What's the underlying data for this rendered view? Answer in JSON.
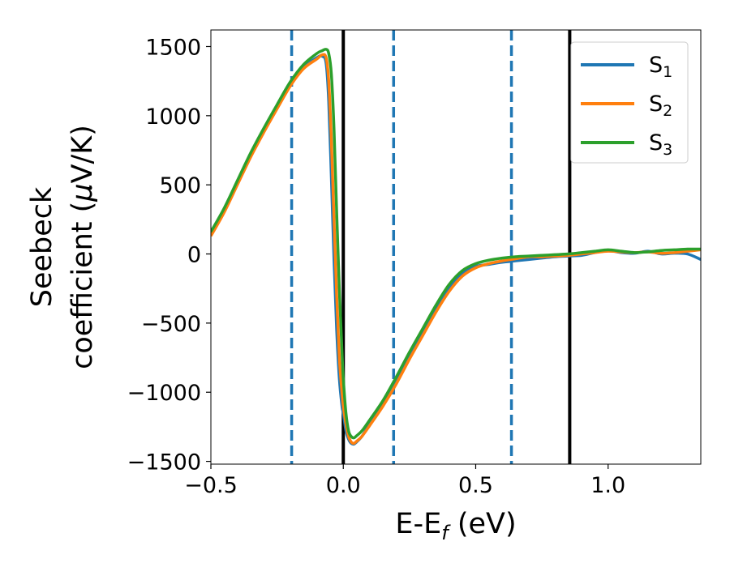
{
  "chart_data": {
    "type": "line",
    "xlabel": "E-E_f (eV)",
    "xlabel_parts": {
      "main": "E-E",
      "sub": "f",
      "tail": " (eV)"
    },
    "ylabel_line1": "Seebeck",
    "ylabel_line2_prefix": "coefficient  (",
    "ylabel_line2_mu": "μ",
    "ylabel_line2_suffix": "V/K)",
    "xlim": [
      -0.5,
      1.35
    ],
    "ylim": [
      -1520,
      1620
    ],
    "x_ticks": [
      {
        "value": -0.5,
        "label": "−0.5"
      },
      {
        "value": 0.0,
        "label": "0.0"
      },
      {
        "value": 0.5,
        "label": "0.5"
      },
      {
        "value": 1.0,
        "label": "1.0"
      }
    ],
    "y_ticks": [
      {
        "value": 1500,
        "label": "1500"
      },
      {
        "value": 1000,
        "label": "1000"
      },
      {
        "value": 500,
        "label": "500"
      },
      {
        "value": 0,
        "label": "0"
      },
      {
        "value": -500,
        "label": "−500"
      },
      {
        "value": -1000,
        "label": "−1000"
      },
      {
        "value": -1500,
        "label": "−1500"
      }
    ],
    "grid": false,
    "legend_placement": "top-right",
    "vertical_lines": [
      {
        "x": -0.195,
        "style": "dashed",
        "color": "#1f77b4"
      },
      {
        "x": 0.0,
        "style": "solid",
        "color": "#000000"
      },
      {
        "x": 0.19,
        "style": "dashed",
        "color": "#1f77b4"
      },
      {
        "x": 0.635,
        "style": "dashed",
        "color": "#1f77b4"
      },
      {
        "x": 0.855,
        "style": "solid",
        "color": "#000000"
      }
    ],
    "series": [
      {
        "name": "S1",
        "label_main": "S",
        "label_sub": "1",
        "color": "#1f77b4",
        "x": [
          -0.5,
          -0.45,
          -0.4,
          -0.35,
          -0.3,
          -0.25,
          -0.2,
          -0.15,
          -0.1,
          -0.08,
          -0.065,
          -0.055,
          -0.045,
          -0.035,
          -0.025,
          -0.015,
          -0.005,
          0.0,
          0.01,
          0.02,
          0.03,
          0.04,
          0.05,
          0.07,
          0.1,
          0.15,
          0.2,
          0.25,
          0.3,
          0.35,
          0.4,
          0.45,
          0.5,
          0.55,
          0.6,
          0.65,
          0.7,
          0.75,
          0.8,
          0.85,
          0.9,
          0.95,
          1.0,
          1.05,
          1.1,
          1.15,
          1.2,
          1.25,
          1.3,
          1.35
        ],
        "y": [
          150,
          320,
          520,
          720,
          900,
          1070,
          1230,
          1350,
          1420,
          1430,
          1380,
          1100,
          550,
          -50,
          -550,
          -900,
          -1100,
          -1150,
          -1280,
          -1340,
          -1370,
          -1375,
          -1360,
          -1320,
          -1230,
          -1090,
          -920,
          -740,
          -570,
          -400,
          -250,
          -140,
          -90,
          -75,
          -60,
          -50,
          -40,
          -30,
          -20,
          -15,
          -10,
          10,
          25,
          10,
          5,
          20,
          0,
          5,
          0,
          -40
        ]
      },
      {
        "name": "S2",
        "label_main": "S",
        "label_sub": "2",
        "color": "#ff7f0e",
        "x": [
          -0.5,
          -0.45,
          -0.4,
          -0.35,
          -0.3,
          -0.25,
          -0.2,
          -0.15,
          -0.1,
          -0.08,
          -0.065,
          -0.055,
          -0.045,
          -0.035,
          -0.025,
          -0.015,
          -0.005,
          0.0,
          0.01,
          0.02,
          0.03,
          0.04,
          0.05,
          0.07,
          0.1,
          0.15,
          0.2,
          0.25,
          0.3,
          0.35,
          0.4,
          0.45,
          0.5,
          0.55,
          0.6,
          0.65,
          0.7,
          0.75,
          0.8,
          0.85,
          0.9,
          0.95,
          1.0,
          1.05,
          1.1,
          1.15,
          1.2,
          1.25,
          1.3,
          1.35
        ],
        "y": [
          130,
          300,
          500,
          700,
          880,
          1050,
          1215,
          1340,
          1410,
          1440,
          1420,
          1250,
          820,
          250,
          -300,
          -750,
          -1000,
          -1100,
          -1230,
          -1320,
          -1360,
          -1370,
          -1355,
          -1320,
          -1240,
          -1100,
          -940,
          -760,
          -590,
          -420,
          -270,
          -160,
          -100,
          -70,
          -50,
          -35,
          -20,
          -20,
          -15,
          -10,
          0,
          10,
          20,
          15,
          10,
          15,
          5,
          10,
          20,
          30
        ]
      },
      {
        "name": "S3",
        "label_main": "S",
        "label_sub": "3",
        "color": "#2ca02c",
        "x": [
          -0.5,
          -0.45,
          -0.4,
          -0.35,
          -0.3,
          -0.25,
          -0.2,
          -0.15,
          -0.1,
          -0.08,
          -0.065,
          -0.055,
          -0.045,
          -0.035,
          -0.025,
          -0.015,
          -0.005,
          0.0,
          0.01,
          0.02,
          0.03,
          0.04,
          0.05,
          0.07,
          0.1,
          0.15,
          0.2,
          0.25,
          0.3,
          0.35,
          0.4,
          0.45,
          0.5,
          0.55,
          0.6,
          0.65,
          0.7,
          0.75,
          0.8,
          0.85,
          0.9,
          0.95,
          1.0,
          1.05,
          1.1,
          1.15,
          1.2,
          1.25,
          1.3,
          1.35
        ],
        "y": [
          160,
          330,
          530,
          730,
          910,
          1080,
          1245,
          1370,
          1450,
          1470,
          1480,
          1450,
          1300,
          900,
          300,
          -250,
          -700,
          -900,
          -1150,
          -1280,
          -1320,
          -1330,
          -1315,
          -1280,
          -1200,
          -1060,
          -890,
          -710,
          -540,
          -370,
          -220,
          -120,
          -70,
          -45,
          -30,
          -20,
          -15,
          -10,
          -5,
          0,
          10,
          20,
          30,
          20,
          10,
          15,
          25,
          30,
          35,
          35
        ]
      }
    ]
  }
}
